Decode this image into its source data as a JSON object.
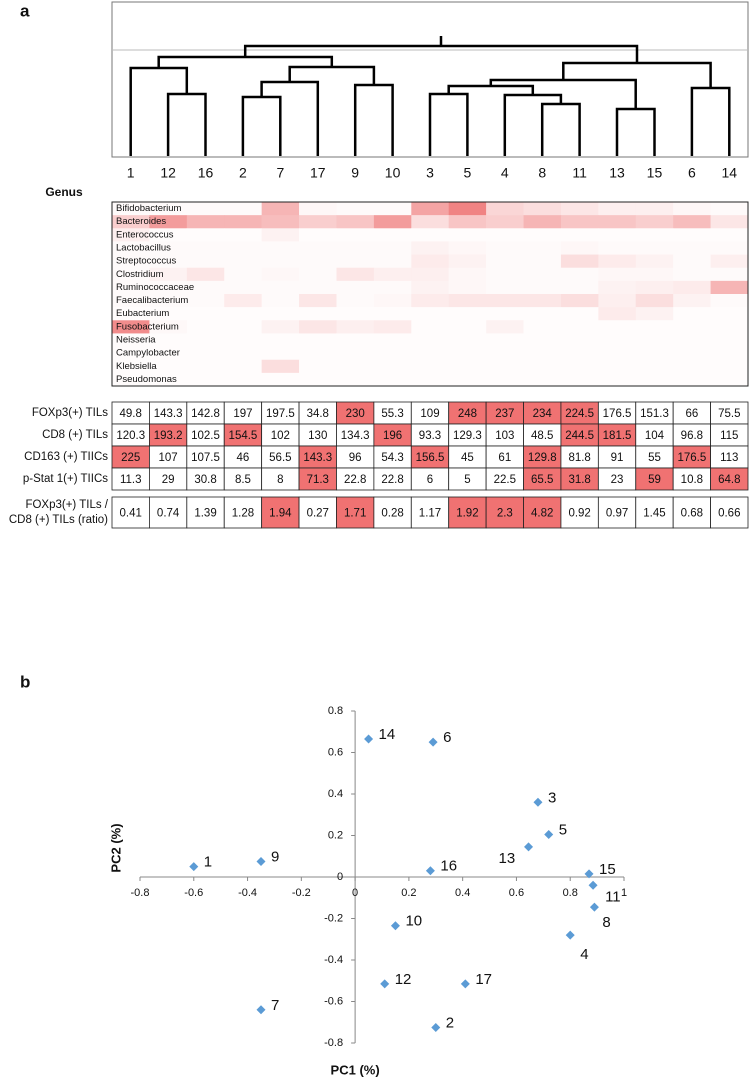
{
  "chart_data": [
    {
      "type": "dendrogram",
      "panel_label": "a",
      "leaves": [
        "1",
        "12",
        "16",
        "2",
        "7",
        "17",
        "9",
        "10",
        "3",
        "5",
        "4",
        "8",
        "11",
        "13",
        "15",
        "6",
        "14"
      ]
    },
    {
      "type": "heatmap",
      "row_title": "Genus",
      "rows": [
        "Bifidobacterium",
        "Bacteroides",
        "Enterococcus",
        "Lactobacillus",
        "Streptococcus",
        "Clostridium",
        "Ruminococcaceae",
        "Faecalibacterium",
        "Eubacterium",
        "Fusobacterium",
        "Neisseria",
        "Campylobacter",
        "Klebsiella",
        "Pseudomonas"
      ],
      "color": "#eb5a5a",
      "values": [
        [
          0.03,
          0.03,
          0.03,
          0.03,
          0.45,
          0.05,
          0.03,
          0.03,
          0.55,
          0.75,
          0.25,
          0.2,
          0.15,
          0.1,
          0.1,
          0.05,
          0.03
        ],
        [
          0.3,
          0.6,
          0.45,
          0.45,
          0.4,
          0.3,
          0.35,
          0.6,
          0.2,
          0.35,
          0.3,
          0.45,
          0.35,
          0.35,
          0.3,
          0.4,
          0.15
        ],
        [
          0.1,
          0.02,
          0.02,
          0.02,
          0.08,
          0.02,
          0.02,
          0.02,
          0.02,
          0.02,
          0.02,
          0.02,
          0.02,
          0.02,
          0.02,
          0.02,
          0.02
        ],
        [
          0.03,
          0.03,
          0.03,
          0.03,
          0.03,
          0.03,
          0.03,
          0.03,
          0.08,
          0.05,
          0.03,
          0.03,
          0.05,
          0.03,
          0.03,
          0.03,
          0.03
        ],
        [
          0.03,
          0.03,
          0.03,
          0.03,
          0.03,
          0.03,
          0.03,
          0.03,
          0.12,
          0.08,
          0.03,
          0.03,
          0.2,
          0.12,
          0.08,
          0.03,
          0.1
        ],
        [
          0.03,
          0.08,
          0.15,
          0.03,
          0.05,
          0.03,
          0.15,
          0.1,
          0.1,
          0.05,
          0.03,
          0.03,
          0.03,
          0.05,
          0.05,
          0.03,
          0.03
        ],
        [
          0.03,
          0.03,
          0.03,
          0.03,
          0.03,
          0.03,
          0.03,
          0.03,
          0.08,
          0.05,
          0.03,
          0.03,
          0.03,
          0.08,
          0.1,
          0.12,
          0.45
        ],
        [
          0.03,
          0.03,
          0.03,
          0.12,
          0.03,
          0.15,
          0.03,
          0.05,
          0.12,
          0.15,
          0.15,
          0.15,
          0.2,
          0.1,
          0.2,
          0.08,
          0.03
        ],
        [
          0.02,
          0.02,
          0.02,
          0.02,
          0.02,
          0.02,
          0.02,
          0.02,
          0.02,
          0.02,
          0.02,
          0.02,
          0.02,
          0.12,
          0.08,
          0.02,
          0.02
        ],
        [
          0.7,
          0.04,
          0.02,
          0.02,
          0.08,
          0.15,
          0.1,
          0.12,
          0.02,
          0.02,
          0.08,
          0.02,
          0.02,
          0.02,
          0.02,
          0.02,
          0.02
        ],
        [
          0.02,
          0.02,
          0.02,
          0.02,
          0.02,
          0.02,
          0.02,
          0.02,
          0.02,
          0.02,
          0.02,
          0.02,
          0.02,
          0.02,
          0.02,
          0.02,
          0.02
        ],
        [
          0.02,
          0.02,
          0.02,
          0.02,
          0.02,
          0.02,
          0.02,
          0.02,
          0.02,
          0.02,
          0.02,
          0.02,
          0.02,
          0.02,
          0.02,
          0.02,
          0.02
        ],
        [
          0.02,
          0.02,
          0.02,
          0.02,
          0.2,
          0.02,
          0.02,
          0.02,
          0.02,
          0.02,
          0.02,
          0.02,
          0.02,
          0.02,
          0.02,
          0.02,
          0.02
        ],
        [
          0.02,
          0.02,
          0.02,
          0.02,
          0.02,
          0.02,
          0.02,
          0.02,
          0.02,
          0.02,
          0.02,
          0.02,
          0.02,
          0.02,
          0.02,
          0.02,
          0.02
        ]
      ]
    },
    {
      "type": "table",
      "highlight_color": "#f07272",
      "rows": [
        {
          "label": [
            "FOXp3(+) TILs"
          ],
          "values": [
            49.8,
            143.3,
            142.8,
            197,
            197.5,
            34.8,
            230,
            55.3,
            109,
            248,
            237,
            234,
            224.5,
            176.5,
            151.3,
            66,
            75.5
          ],
          "highlight": [
            6,
            9,
            10,
            11,
            12
          ]
        },
        {
          "label": [
            "CD8 (+) TILs"
          ],
          "values": [
            120.3,
            193.2,
            102.5,
            154.5,
            102,
            130,
            134.3,
            196,
            93.3,
            129.3,
            103,
            48.5,
            244.5,
            181.5,
            104,
            96.8,
            115
          ],
          "highlight": [
            1,
            3,
            7,
            12,
            13
          ]
        },
        {
          "label": [
            "CD163 (+) TIICs"
          ],
          "values": [
            225,
            107,
            107.5,
            46,
            56.5,
            143.3,
            96,
            54.3,
            156.5,
            45,
            61,
            129.8,
            81.8,
            91,
            55,
            176.5,
            113
          ],
          "highlight": [
            0,
            5,
            8,
            11,
            15
          ]
        },
        {
          "label": [
            "p-Stat 1(+) TIICs"
          ],
          "values": [
            11.3,
            29,
            30.8,
            8.5,
            8,
            71.3,
            22.8,
            22.8,
            6,
            5,
            22.5,
            65.5,
            31.8,
            23,
            59,
            10.8,
            64.8
          ],
          "highlight": [
            5,
            11,
            12,
            14,
            16
          ]
        },
        {
          "label": [
            "FOXp3(+) TILs /",
            "CD8 (+) TILs (ratio)"
          ],
          "values": [
            0.41,
            0.74,
            1.39,
            1.28,
            1.94,
            0.27,
            1.71,
            0.28,
            1.17,
            1.92,
            2.3,
            4.82,
            0.92,
            0.97,
            1.45,
            0.68,
            0.66
          ],
          "highlight": [
            4,
            6,
            9,
            10,
            11
          ]
        }
      ]
    },
    {
      "type": "scatter",
      "panel_label": "b",
      "x_label": "PC1 (%)",
      "y_label": "PC2 (%)",
      "color": "#5b9bd5",
      "labels": [
        "1",
        "9",
        "14",
        "6",
        "3",
        "5",
        "13",
        "16",
        "15",
        "11",
        "8",
        "4",
        "10",
        "12",
        "17",
        "7",
        "2"
      ],
      "x": [
        -0.6,
        -0.35,
        0.05,
        0.29,
        0.68,
        0.72,
        0.645,
        0.28,
        0.87,
        0.885,
        0.89,
        0.8,
        0.15,
        0.11,
        0.41,
        -0.35,
        0.3
      ],
      "values": [
        0.05,
        0.075,
        0.665,
        0.65,
        0.36,
        0.205,
        0.145,
        0.03,
        0.015,
        -0.04,
        -0.145,
        -0.28,
        -0.235,
        -0.515,
        -0.515,
        -0.64,
        -0.725
      ],
      "xlim": [
        -0.8,
        1
      ],
      "xticks": [
        -0.8,
        -0.6,
        -0.4,
        -0.2,
        0,
        0.2,
        0.4,
        0.6,
        0.8,
        1
      ],
      "ylim": [
        -0.8,
        0.8
      ],
      "yticks": [
        -0.8,
        -0.6,
        -0.4,
        -0.2,
        0,
        0.2,
        0.4,
        0.6,
        0.8
      ]
    }
  ]
}
